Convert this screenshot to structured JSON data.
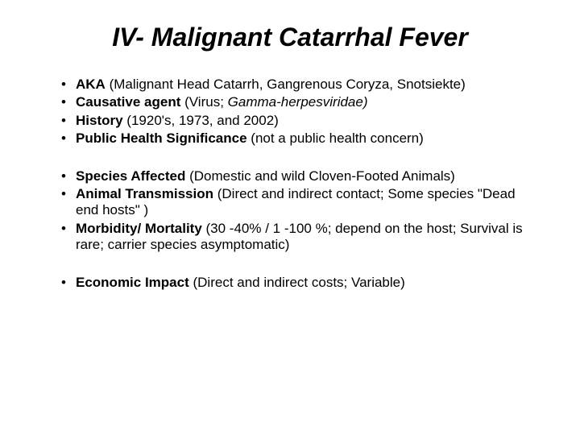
{
  "title": "IV- Malignant Catarrhal Fever",
  "groups": [
    {
      "items": [
        {
          "label": "AKA",
          "rest": " (Malignant Head Catarrh, Gangrenous Coryza, Snotsiekte)"
        },
        {
          "label": "Causative agent",
          "rest_prefix": " (Virus; ",
          "rest_italic": "Gamma-herpesviridae)",
          "rest_suffix": ""
        },
        {
          "label": "History",
          "rest": " (1920's, 1973, and 2002)"
        },
        {
          "label": "Public Health Significance",
          "rest": " (not a public health concern)"
        }
      ]
    },
    {
      "items": [
        {
          "label": "Species Affected",
          "rest": " (Domestic and wild Cloven-Footed Animals)"
        },
        {
          "label": "Animal Transmission",
          "rest": " (Direct and indirect contact; Some species \"Dead end hosts\" )"
        },
        {
          "label": "Morbidity/ Mortality",
          "rest": " (30 -40% / 1 -100 %; depend on the host; Survival is rare; carrier species asymptomatic)"
        }
      ]
    },
    {
      "items": [
        {
          "label": "Economic Impact",
          "rest": " (Direct and indirect costs; Variable)"
        }
      ]
    }
  ]
}
